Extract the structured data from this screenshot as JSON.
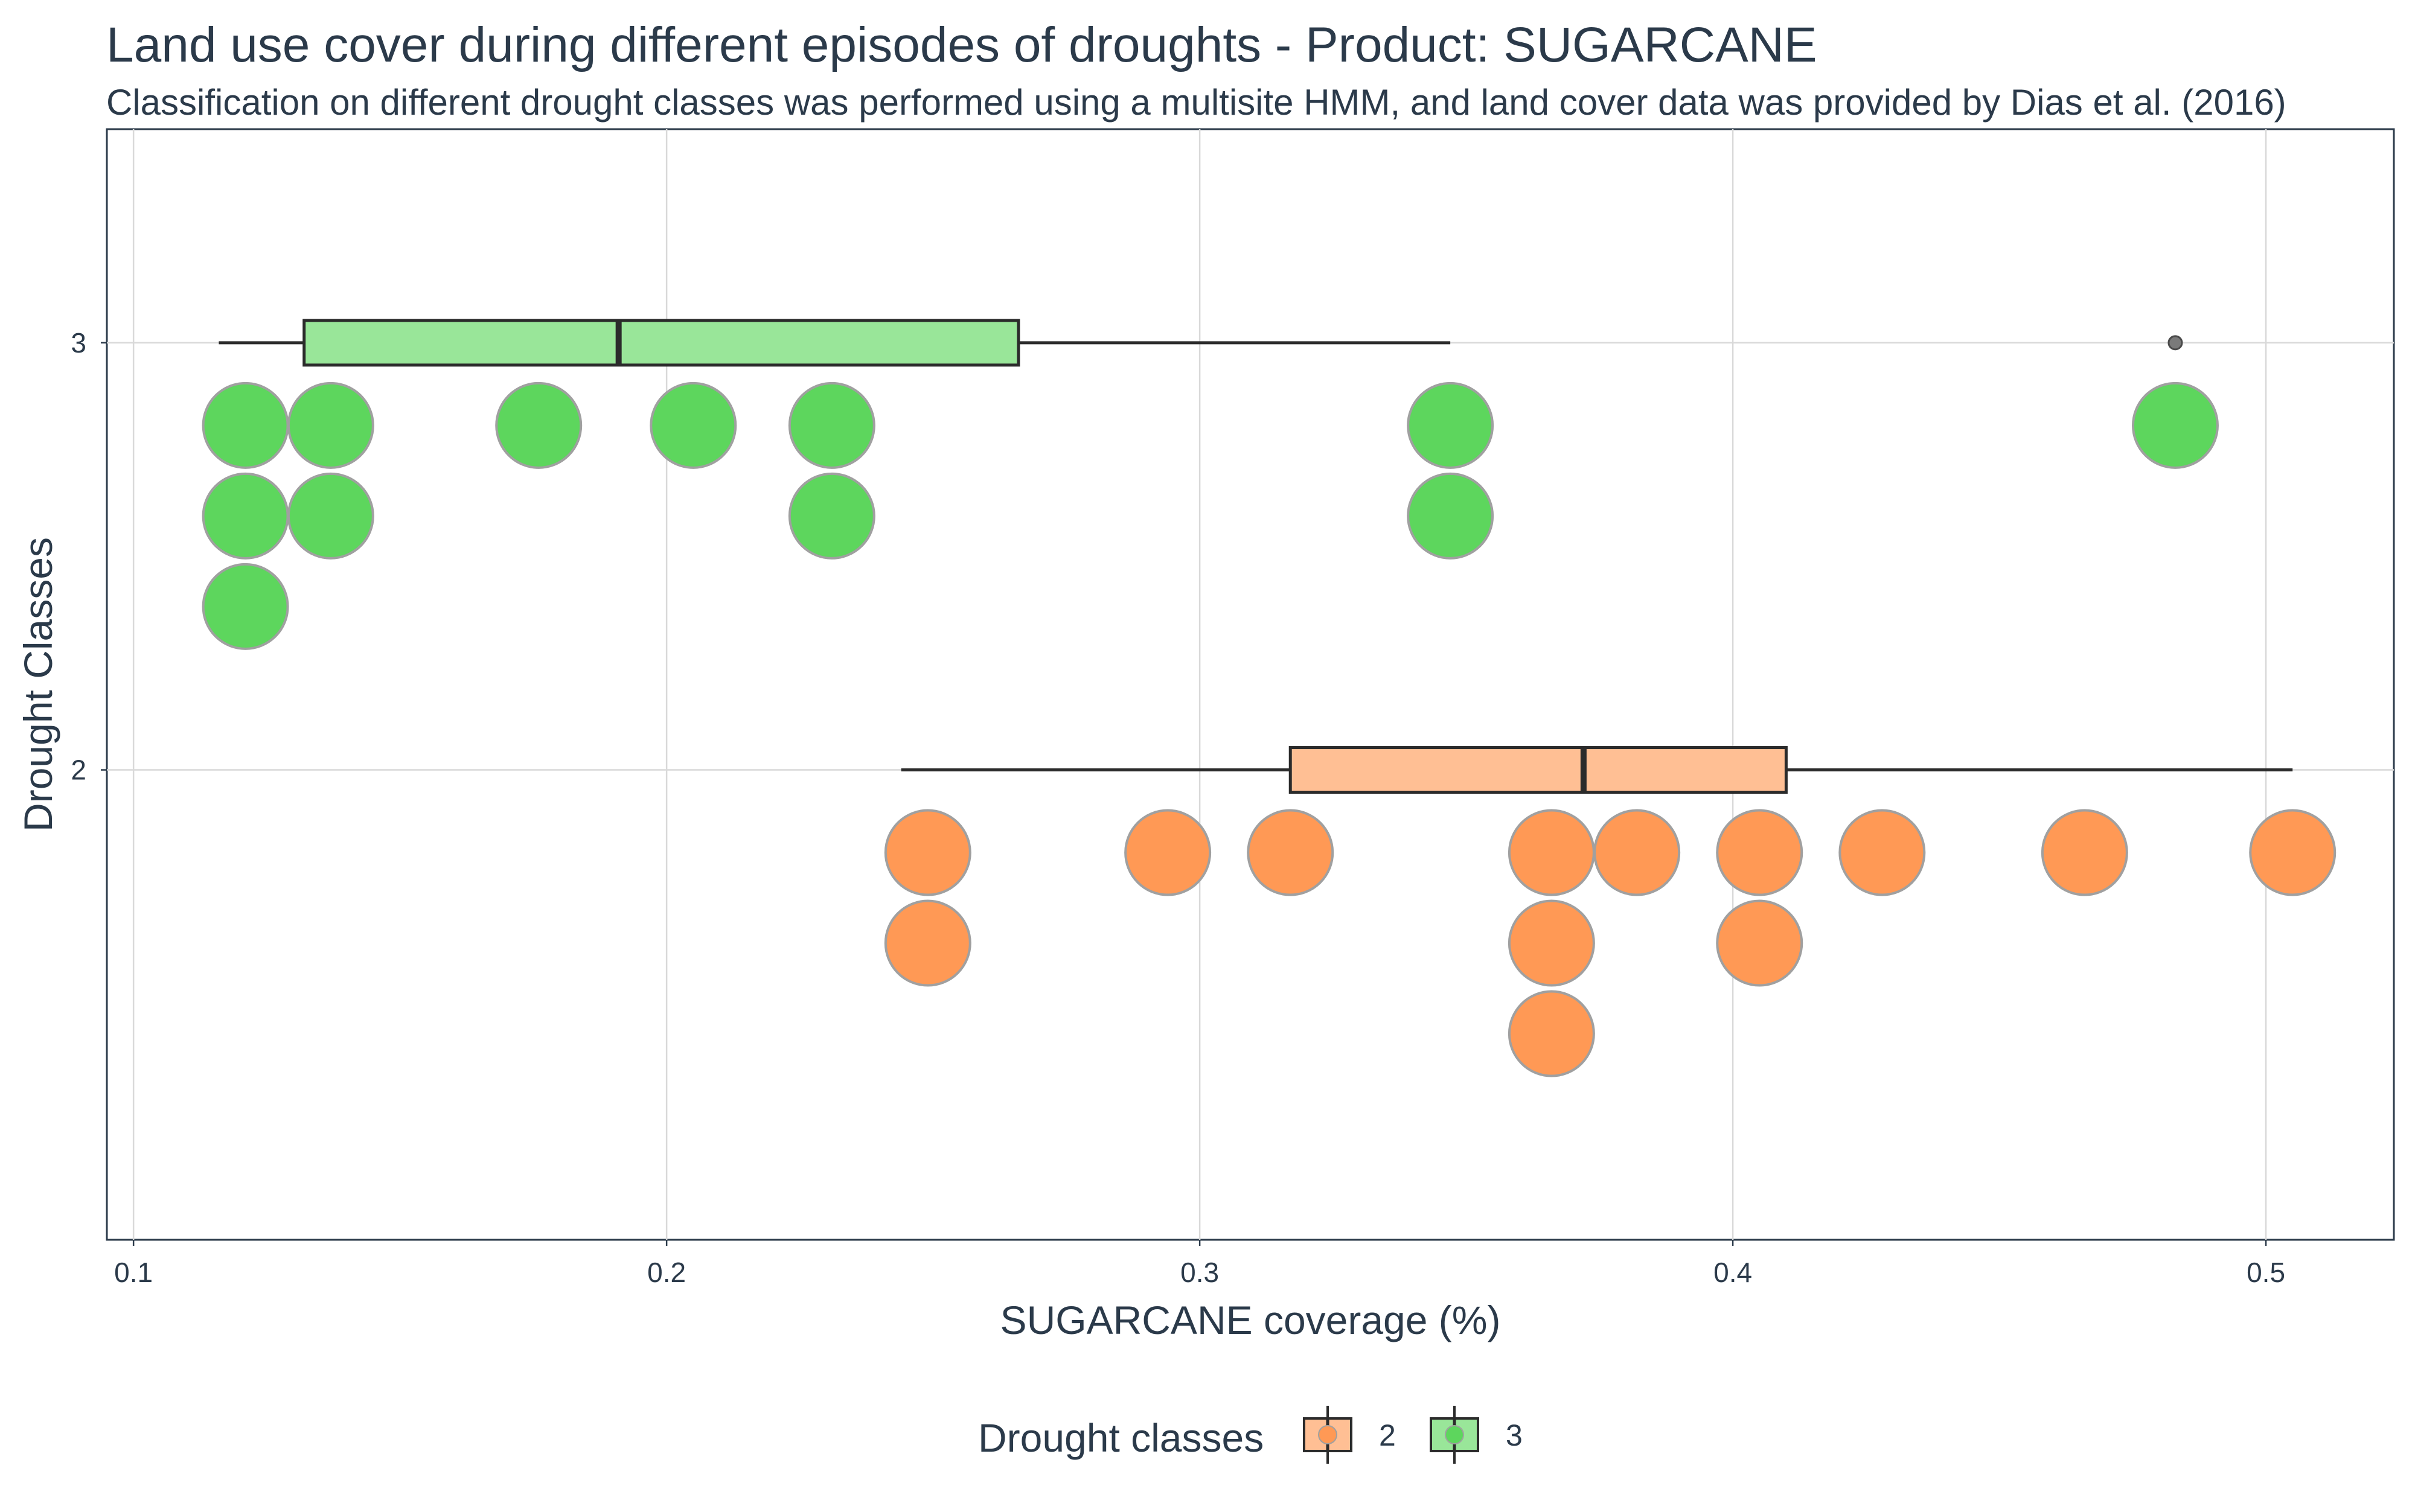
{
  "chart_data": {
    "type": "box_dotplot",
    "title": "Land use cover during different episodes of droughts - Product: SUGARCANE",
    "subtitle": "Classification on different drought classes was performed using a multisite HMM, and land cover data was provided by Dias et al. (2016)",
    "xlabel": "SUGARCANE coverage (%)",
    "ylabel": "Drought Classes",
    "xlim": [
      0.095,
      0.524
    ],
    "ylim": [
      0.9,
      3.5
    ],
    "x_ticks": [
      0.1,
      0.2,
      0.3,
      0.4,
      0.5
    ],
    "x_tick_labels": [
      "0.1",
      "0.2",
      "0.3",
      "0.4",
      "0.5"
    ],
    "y_ticks": [
      2,
      3
    ],
    "y_tick_labels": [
      "2",
      "3"
    ],
    "grid": true,
    "legend": {
      "title": "Drought classes",
      "position": "bottom",
      "entries": [
        {
          "label": "2",
          "fill": "#ffbf94",
          "dot": "#ff9955"
        },
        {
          "label": "3",
          "fill": "#99e699",
          "dot": "#5dd65d"
        }
      ]
    },
    "series": [
      {
        "name": "2",
        "y": 2,
        "box_fill": "#ffbf94",
        "dot_color": "#ff9955",
        "box": {
          "whisker_low": 0.244,
          "q1": 0.317,
          "median": 0.372,
          "q3": 0.41,
          "whisker_high": 0.505
        },
        "outliers": [],
        "points": [
          0.249,
          0.249,
          0.294,
          0.317,
          0.366,
          0.366,
          0.366,
          0.382,
          0.405,
          0.405,
          0.428,
          0.466,
          0.505
        ]
      },
      {
        "name": "3",
        "y": 3,
        "box_fill": "#99e699",
        "dot_color": "#5dd65d",
        "box": {
          "whisker_low": 0.116,
          "q1": 0.132,
          "median": 0.191,
          "q3": 0.266,
          "whisker_high": 0.347
        },
        "outliers": [
          0.483
        ],
        "points": [
          0.121,
          0.121,
          0.121,
          0.137,
          0.137,
          0.176,
          0.205,
          0.231,
          0.231,
          0.347,
          0.347,
          0.483
        ]
      }
    ]
  }
}
